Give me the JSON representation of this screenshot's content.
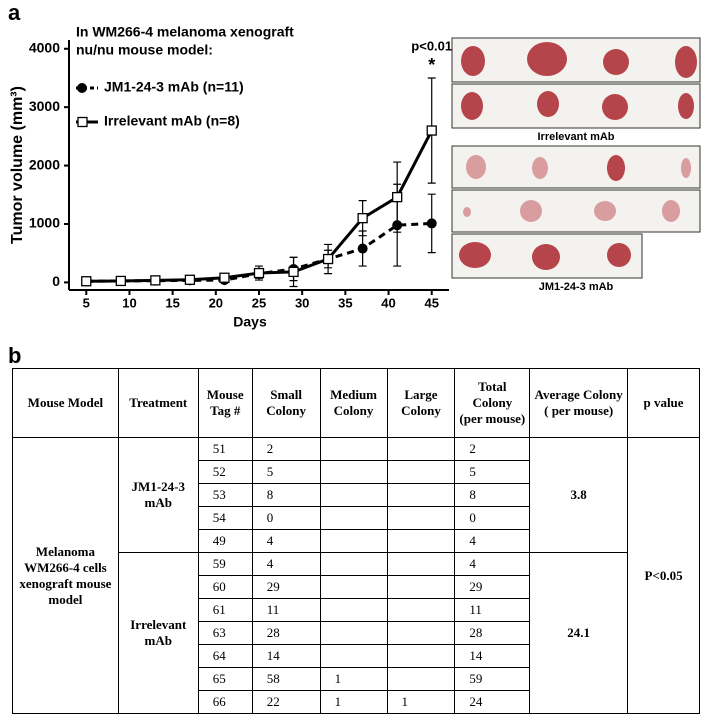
{
  "panel_labels": [
    "a",
    "b"
  ],
  "chart_data": {
    "type": "line",
    "legend_title": [
      "In WM266-4 melanoma xenograft",
      "nu/nu mouse model:"
    ],
    "xlabel": "Days",
    "ylabel": "Tumor volume (mm³)",
    "x": [
      5,
      9,
      13,
      17,
      21,
      25,
      29,
      33,
      37,
      41,
      45
    ],
    "series": [
      {
        "name": "JM1-24-3 mAb (n=11)",
        "color": "#000000",
        "marker": "circle",
        "linestyle": "dashed",
        "values": [
          20,
          25,
          30,
          35,
          40,
          150,
          230,
          400,
          580,
          980,
          1010
        ],
        "errors": [
          5,
          10,
          15,
          15,
          20,
          80,
          200,
          150,
          300,
          700,
          500
        ]
      },
      {
        "name": "Irrelevant mAb (n=8)",
        "color": "#000000",
        "marker": "square",
        "linestyle": "solid",
        "values": [
          20,
          25,
          35,
          45,
          80,
          160,
          180,
          400,
          1100,
          1460,
          2600
        ],
        "errors": [
          10,
          20,
          20,
          30,
          60,
          120,
          250,
          250,
          300,
          600,
          900
        ]
      }
    ],
    "annotations": [
      "p<0.01",
      "*"
    ],
    "xlim": [
      3,
      47
    ],
    "xticks": [
      5,
      10,
      15,
      20,
      25,
      30,
      35,
      40,
      45
    ],
    "ylim": [
      -130,
      4150
    ],
    "yticks": [
      0,
      1000,
      2000,
      3000,
      4000
    ]
  },
  "photos": {
    "captions": [
      "Irrelevant mAb",
      "JM1-24-3 mAb"
    ]
  },
  "table": {
    "header": [
      "Mouse Model",
      "Treatment",
      "Mouse Tag #",
      "Small Colony",
      "Medium Colony",
      "Large Colony",
      "Total Colony (per mouse)",
      "Average Colony ( per mouse)",
      "p value"
    ],
    "model": "Melanoma WM266-4 cells xenograft mouse model",
    "p_value": "P<0.05",
    "groups": [
      {
        "treatment": "JM1-24-3 mAb",
        "average": 3.8,
        "mice": [
          {
            "tag": 51,
            "small": 2,
            "total": 2
          },
          {
            "tag": 52,
            "small": 5,
            "total": 5
          },
          {
            "tag": 53,
            "small": 8,
            "total": 8
          },
          {
            "tag": 54,
            "small": 0,
            "total": 0
          },
          {
            "tag": 49,
            "small": 4,
            "total": 4
          }
        ]
      },
      {
        "treatment": "Irrelevant mAb",
        "average": 24.1,
        "mice": [
          {
            "tag": 59,
            "small": 4,
            "total": 4
          },
          {
            "tag": 60,
            "small": 29,
            "total": 29
          },
          {
            "tag": 61,
            "small": 11,
            "total": 11
          },
          {
            "tag": 63,
            "small": 28,
            "total": 28
          },
          {
            "tag": 64,
            "small": 14,
            "total": 14
          },
          {
            "tag": 65,
            "small": 58,
            "medium": 1,
            "total": 59
          },
          {
            "tag": 66,
            "small": 22,
            "medium": 1,
            "large": 1,
            "total": 24
          }
        ]
      }
    ]
  }
}
